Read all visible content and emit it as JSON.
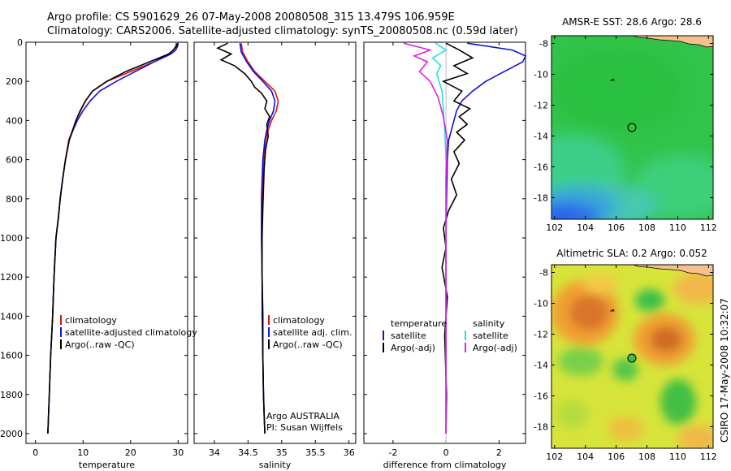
{
  "header": {
    "line1": "Argo profile: CS 5901629_26 07-May-2008 20080508_315 13.479S 106.959E",
    "line2": "Climatology: CARS2006. Satellite-adjusted climatology: synTS_20080508.nc (0.59d later)"
  },
  "side_label": "CSIRO 17-May-2008 10:32:07",
  "colors": {
    "climatology": "#e01010",
    "satellite": "#1010e0",
    "argo": "#000000",
    "cyan": "#20e0e0",
    "magenta": "#e020e0",
    "land": "#f5c08e"
  },
  "chart_data": [
    {
      "type": "line",
      "name": "temperature-profile",
      "xlabel": "temperature",
      "xlim": [
        -2,
        32
      ],
      "ylim": [
        2050,
        0
      ],
      "y_reversed": true,
      "xticks": [
        0,
        10,
        20,
        30
      ],
      "yticks": [
        0,
        200,
        400,
        600,
        800,
        1000,
        1200,
        1400,
        1600,
        1800,
        2000
      ],
      "legend": [
        "climatology",
        "satellite-adjusted climatology",
        "Argo(..raw -QC)"
      ],
      "series": [
        {
          "name": "climatology",
          "color": "#e01010",
          "x": [
            29.6,
            29.5,
            29.0,
            28.0,
            25.0,
            20.0,
            15.0,
            12.0,
            10.5,
            9.5,
            8.5,
            7.8,
            7.0,
            6.3,
            5.7,
            5.2,
            4.8,
            4.3,
            3.9,
            3.6,
            3.2,
            2.9,
            2.6
          ],
          "y": [
            5,
            20,
            40,
            60,
            100,
            150,
            200,
            250,
            300,
            350,
            400,
            450,
            500,
            600,
            700,
            800,
            900,
            1000,
            1200,
            1400,
            1600,
            1800,
            2000
          ]
        },
        {
          "name": "satellite-adjusted climatology",
          "color": "#1010e0",
          "x": [
            30.0,
            29.9,
            29.5,
            28.5,
            25.0,
            21.0,
            17.0,
            13.5,
            11.5,
            10.0,
            8.8,
            7.9,
            7.1,
            6.3,
            5.7,
            5.2,
            4.8,
            4.3,
            3.9,
            3.6,
            3.2,
            2.9,
            2.6
          ],
          "y": [
            5,
            20,
            40,
            60,
            100,
            150,
            200,
            250,
            300,
            350,
            400,
            450,
            500,
            600,
            700,
            800,
            900,
            1000,
            1200,
            1400,
            1600,
            1800,
            2000
          ]
        },
        {
          "name": "Argo(..raw -QC)",
          "color": "#000000",
          "x": [
            29.8,
            29.7,
            29.0,
            28.0,
            24.0,
            19.0,
            15.0,
            12.0,
            10.5,
            9.4,
            8.5,
            7.8,
            7.1,
            6.3,
            5.7,
            5.2,
            4.8,
            4.3,
            3.9,
            3.6,
            3.2,
            2.9,
            2.6
          ],
          "y": [
            5,
            20,
            40,
            60,
            100,
            150,
            200,
            250,
            300,
            350,
            400,
            450,
            500,
            600,
            700,
            800,
            900,
            1000,
            1200,
            1400,
            1600,
            1800,
            2000
          ]
        }
      ]
    },
    {
      "type": "line",
      "name": "salinity-profile",
      "xlabel": "salinity",
      "xlim": [
        33.7,
        36.1
      ],
      "ylim": [
        2050,
        0
      ],
      "y_reversed": true,
      "xticks": [
        34,
        34.5,
        35,
        35.5,
        36
      ],
      "legend": [
        "climatology",
        "satellite adj. clim.",
        "Argo(..raw -QC)"
      ],
      "annotation": [
        "Argo AUSTRALIA",
        "PI: Susan Wijffels"
      ],
      "series": [
        {
          "name": "climatology",
          "color": "#e01010",
          "x": [
            34.4,
            34.42,
            34.5,
            34.6,
            34.75,
            34.9,
            34.95,
            34.92,
            34.85,
            34.8,
            34.76,
            34.73,
            34.72,
            34.71,
            34.71,
            34.71,
            34.72,
            34.72,
            34.73,
            34.74,
            34.75
          ],
          "y": [
            5,
            50,
            100,
            150,
            200,
            250,
            300,
            350,
            400,
            450,
            500,
            600,
            700,
            800,
            1000,
            1200,
            1400,
            1600,
            1800,
            1900,
            2000
          ]
        },
        {
          "name": "satellite adj. clim.",
          "color": "#1010e0",
          "x": [
            34.38,
            34.4,
            34.48,
            34.58,
            34.72,
            34.85,
            34.9,
            34.88,
            34.82,
            34.78,
            34.75,
            34.72,
            34.71,
            34.7,
            34.7,
            34.71,
            34.71,
            34.72,
            34.73,
            34.74,
            34.75
          ],
          "y": [
            5,
            50,
            100,
            150,
            200,
            250,
            300,
            350,
            400,
            450,
            500,
            600,
            700,
            800,
            1000,
            1200,
            1400,
            1600,
            1800,
            1900,
            2000
          ]
        },
        {
          "name": "Argo(..raw -QC)",
          "color": "#000000",
          "x": [
            34.2,
            34.05,
            34.25,
            34.1,
            34.3,
            34.45,
            34.55,
            34.6,
            34.7,
            34.78,
            34.75,
            34.82,
            34.78,
            34.8,
            34.76,
            34.74,
            34.73,
            34.72,
            34.71,
            34.71,
            34.72,
            34.72,
            34.73,
            34.74,
            34.75
          ],
          "y": [
            5,
            30,
            60,
            90,
            120,
            160,
            200,
            230,
            260,
            300,
            340,
            380,
            420,
            480,
            550,
            650,
            750,
            850,
            1000,
            1200,
            1400,
            1600,
            1800,
            1900,
            2000
          ]
        }
      ]
    },
    {
      "type": "line",
      "name": "difference-profile",
      "xlabel": "difference from climatology",
      "xlim": [
        -3.1,
        3.0
      ],
      "ylim": [
        2050,
        0
      ],
      "y_reversed": true,
      "xticks": [
        -2,
        0,
        2
      ],
      "legend_left": [
        "temperature",
        "satellite",
        "Argo(-adj)"
      ],
      "legend_right": [
        "salinity",
        "satellite",
        "Argo(-adj)"
      ],
      "series": [
        {
          "name": "temperature satellite",
          "color": "#1010e0",
          "x": [
            0.8,
            2.5,
            3.0,
            2.9,
            2.2,
            1.5,
            1.0,
            0.6,
            0.4,
            0.3,
            0.2,
            0.1,
            0.05,
            0.02,
            0.0,
            0.0,
            0.0,
            0.0
          ],
          "y": [
            5,
            40,
            70,
            100,
            150,
            200,
            250,
            300,
            350,
            400,
            450,
            500,
            600,
            800,
            1000,
            1400,
            1800,
            2000
          ]
        },
        {
          "name": "temperature Argo(-adj)",
          "color": "#000000",
          "x": [
            0.0,
            0.5,
            1.0,
            0.3,
            0.8,
            -0.1,
            0.6,
            0.3,
            0.9,
            0.5,
            0.8,
            0.4,
            0.7,
            0.3,
            0.5,
            0.2,
            0.4,
            0.1,
            -0.1,
            0.0,
            -0.15,
            0.05,
            -0.05,
            0.02,
            0.0
          ],
          "y": [
            5,
            40,
            80,
            120,
            160,
            200,
            250,
            300,
            340,
            380,
            420,
            460,
            500,
            560,
            620,
            700,
            780,
            860,
            950,
            1050,
            1150,
            1300,
            1500,
            1800,
            2000
          ]
        },
        {
          "name": "salinity satellite",
          "color": "#20e0e0",
          "x": [
            -0.4,
            0.0,
            -0.5,
            -0.2,
            -0.35,
            -0.15,
            -0.1,
            -0.05,
            0.0,
            0.0,
            0.0,
            0.0,
            0.0
          ],
          "y": [
            5,
            40,
            80,
            120,
            160,
            250,
            350,
            450,
            600,
            800,
            1200,
            1600,
            2000
          ]
        },
        {
          "name": "salinity Argo(-adj)",
          "color": "#e020e0",
          "x": [
            -1.6,
            -0.6,
            -1.2,
            -0.7,
            -1.0,
            -0.6,
            -0.3,
            -0.1,
            0.05,
            0.0,
            0.0,
            0.0,
            0.0
          ],
          "y": [
            5,
            40,
            70,
            100,
            150,
            200,
            280,
            380,
            500,
            700,
            1000,
            1500,
            2000
          ]
        }
      ]
    },
    {
      "type": "heatmap",
      "name": "amsre-sst-map",
      "title": "AMSR-E SST: 28.6 Argo: 28.6",
      "xlim": [
        101.8,
        112.3
      ],
      "ylim": [
        -19.4,
        -7.5
      ],
      "xticks": [
        102,
        104,
        106,
        108,
        110,
        112
      ],
      "yticks": [
        -8,
        -10,
        -12,
        -14,
        -16,
        -18
      ],
      "marker": {
        "lon": 106.959,
        "lat": -13.479
      }
    },
    {
      "type": "heatmap",
      "name": "altimetric-sla-map",
      "title": "Altimetric SLA: 0.2 Argo: 0.052",
      "xlim": [
        101.8,
        112.3
      ],
      "ylim": [
        -19.4,
        -7.5
      ],
      "xticks": [
        102,
        104,
        106,
        108,
        110,
        112
      ],
      "yticks": [
        -8,
        -10,
        -12,
        -14,
        -16,
        -18
      ],
      "marker": {
        "lon": 106.959,
        "lat": -13.479
      }
    }
  ]
}
